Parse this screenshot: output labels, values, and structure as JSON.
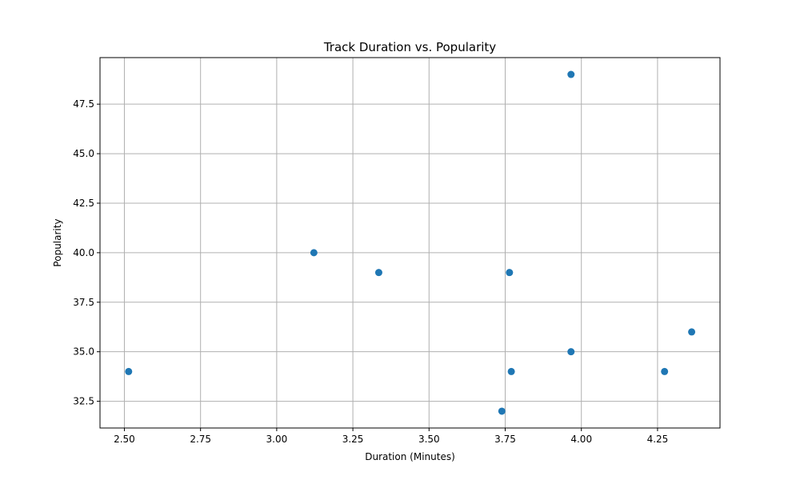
{
  "chart_data": {
    "type": "scatter",
    "title": "Track Duration vs. Popularity",
    "xlabel": "Duration (Minutes)",
    "ylabel": "Popularity",
    "xlim": [
      2.42,
      4.455
    ],
    "ylim": [
      31.15,
      49.85
    ],
    "xticks": [
      "2.50",
      "2.75",
      "3.00",
      "3.25",
      "3.50",
      "3.75",
      "4.00",
      "4.25"
    ],
    "yticks": [
      "32.5",
      "35.0",
      "37.5",
      "40.0",
      "42.5",
      "45.0",
      "47.5"
    ],
    "grid": true,
    "marker_color": "#1f77b4",
    "points": [
      {
        "x": 2.514,
        "y": 34
      },
      {
        "x": 3.122,
        "y": 40
      },
      {
        "x": 3.335,
        "y": 39
      },
      {
        "x": 3.739,
        "y": 32
      },
      {
        "x": 3.764,
        "y": 39
      },
      {
        "x": 3.77,
        "y": 34
      },
      {
        "x": 3.966,
        "y": 49
      },
      {
        "x": 3.966,
        "y": 35
      },
      {
        "x": 4.273,
        "y": 34
      },
      {
        "x": 4.362,
        "y": 36
      }
    ]
  }
}
